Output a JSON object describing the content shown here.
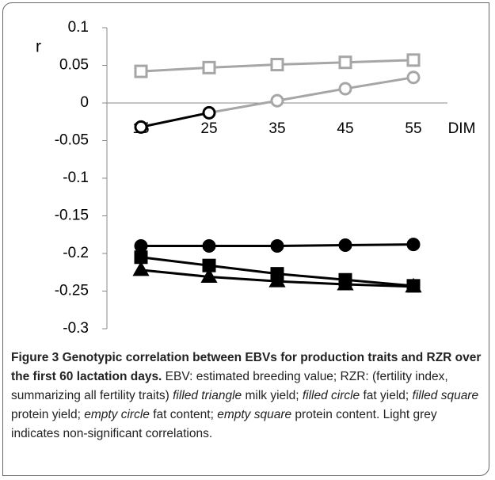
{
  "chart_data": {
    "type": "line",
    "y_label": "r",
    "x_label": "DIM",
    "categories": [
      "15",
      "25",
      "35",
      "45",
      "55"
    ],
    "ylim": [
      -0.3,
      0.1
    ],
    "yticks": [
      -0.3,
      -0.25,
      -0.2,
      -0.15,
      -0.1,
      -0.05,
      0,
      0.05,
      0.1
    ],
    "series": [
      {
        "marker": "square",
        "filled": false,
        "color": "#a6a6a6",
        "values": [
          0.042,
          0.047,
          0.051,
          0.054,
          0.057
        ]
      },
      {
        "marker": "circle",
        "filled": false,
        "color": "#a6a6a6",
        "point_colors": [
          "#000000",
          "#000000",
          "#a6a6a6",
          "#a6a6a6",
          "#a6a6a6"
        ],
        "values": [
          -0.032,
          -0.013,
          0.003,
          0.019,
          0.034
        ]
      },
      {
        "marker": "circle",
        "filled": true,
        "color": "#000000",
        "values": [
          -0.19,
          -0.19,
          -0.19,
          -0.189,
          -0.188
        ]
      },
      {
        "marker": "square",
        "filled": true,
        "color": "#000000",
        "values": [
          -0.205,
          -0.216,
          -0.227,
          -0.235,
          -0.243
        ]
      },
      {
        "marker": "triangle",
        "filled": true,
        "color": "#000000",
        "values": [
          -0.222,
          -0.231,
          -0.237,
          -0.241,
          -0.244
        ]
      }
    ]
  },
  "caption": [
    {
      "text": "Figure 3 Genotypic correlation between EBVs for production traits and RZR over the first 60 lactation days.",
      "style": "bold"
    },
    {
      "text": " EBV: estimated breeding value; RZR: (fertility index, summarizing all fertility traits) "
    },
    {
      "text": "filled triangle",
      "style": "italic"
    },
    {
      "text": " milk yield; "
    },
    {
      "text": "filled circle",
      "style": "italic"
    },
    {
      "text": " fat yield; "
    },
    {
      "text": "filled square",
      "style": "italic"
    },
    {
      "text": " protein yield; "
    },
    {
      "text": "empty circle",
      "style": "italic"
    },
    {
      "text": " fat content; "
    },
    {
      "text": "empty square",
      "style": "italic"
    },
    {
      "text": " protein content. Light grey indicates non-significant correlations."
    }
  ]
}
